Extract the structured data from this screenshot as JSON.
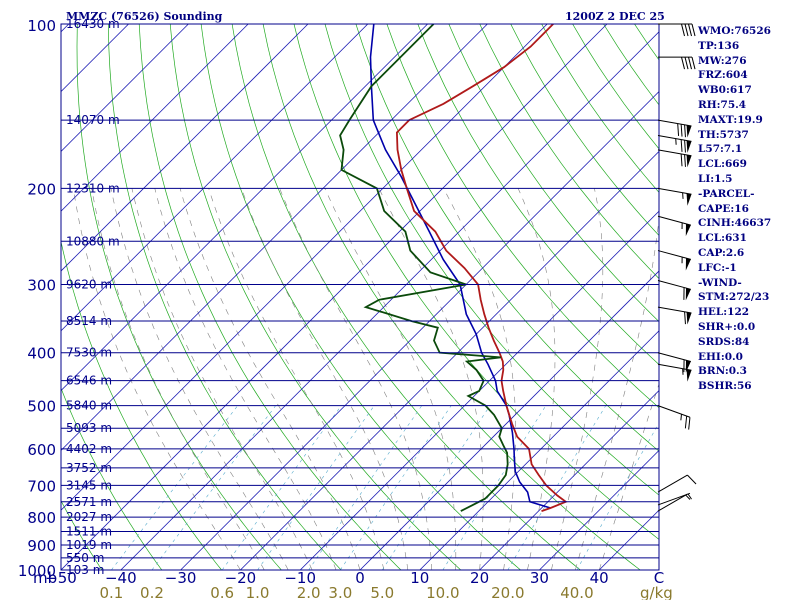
{
  "header": {
    "station_title": "MMZC (76526) Sounding",
    "valid_time": "1200Z  2 DEC 25"
  },
  "indices": [
    "WMO:76526",
    "TP:136",
    "MW:276",
    "FRZ:604",
    "WB0:617",
    "RH:75.4",
    "MAXT:19.9",
    "TH:5737",
    "L57:7.1",
    "LCL:669",
    "LI:1.5",
    "-PARCEL-",
    "CAPE:16",
    "CINH:46637",
    "LCL:631",
    "CAP:2.6",
    "LFC:-1",
    "-WIND-",
    "STM:272/23",
    "HEL:122",
    "SHR+:0.0",
    "SRDS:84",
    "EHI:0.0",
    "BRN:0.3",
    "BSHR:56"
  ],
  "colors": {
    "isobar": "#00008b",
    "isotherm": "#1e1eb4",
    "dry_adiabat": "#22aa22",
    "moist_adiabat": "#808080",
    "mixing_ratio": "#6fa34a",
    "dewpoint_faint": "#55aacc",
    "temperature": "#b01a1a",
    "dewpoint": "#0b4a0b",
    "parcel": "#0000aa",
    "label": "#00008b",
    "mixing_label": "#8a7a2e"
  },
  "chart_data": {
    "type": "skew-t",
    "xlabel": "C",
    "y_unit": "mb",
    "x_range_C": [
      -50,
      50
    ],
    "p_range_mb": [
      1000,
      100
    ],
    "pressure_ticks": [
      100,
      200,
      300,
      400,
      500,
      600,
      700,
      800,
      900,
      1000
    ],
    "temperature_ticks": [
      -50,
      -40,
      -30,
      -20,
      -10,
      0,
      10,
      20,
      30,
      40
    ],
    "mixing_ratio_unit": "g/kg",
    "mixing_ratio_ticks": [
      "0.1",
      "0.2",
      "0.6",
      "1.0",
      "2.0",
      "3.0",
      "5.0",
      "10.0",
      "20.0",
      "40.0"
    ],
    "height_labels": [
      {
        "p": 100,
        "text": "16430 m"
      },
      {
        "p": 150,
        "text": "14070 m"
      },
      {
        "p": 200,
        "text": "12310 m"
      },
      {
        "p": 250,
        "text": "10880 m"
      },
      {
        "p": 300,
        "text": "9620 m"
      },
      {
        "p": 350,
        "text": "8514 m"
      },
      {
        "p": 400,
        "text": "7530 m"
      },
      {
        "p": 450,
        "text": "6546 m"
      },
      {
        "p": 500,
        "text": "5840 m"
      },
      {
        "p": 550,
        "text": "5093 m"
      },
      {
        "p": 600,
        "text": "4402 m"
      },
      {
        "p": 650,
        "text": "3752 m"
      },
      {
        "p": 700,
        "text": "3145 m"
      },
      {
        "p": 750,
        "text": "2571 m"
      },
      {
        "p": 800,
        "text": "2027 m"
      },
      {
        "p": 850,
        "text": "1511 m"
      },
      {
        "p": 900,
        "text": "1019 m"
      },
      {
        "p": 950,
        "text": "550 m"
      },
      {
        "p": 1000,
        "text": "103 m"
      }
    ],
    "temperature_profile": [
      [
        780,
        20.5
      ],
      [
        770,
        21.5
      ],
      [
        750,
        23
      ],
      [
        730,
        20.5
      ],
      [
        700,
        17
      ],
      [
        670,
        14
      ],
      [
        640,
        11
      ],
      [
        600,
        8
      ],
      [
        570,
        4
      ],
      [
        540,
        1
      ],
      [
        500,
        -3
      ],
      [
        470,
        -6
      ],
      [
        450,
        -8
      ],
      [
        430,
        -9.5
      ],
      [
        415,
        -11
      ],
      [
        400,
        -13
      ],
      [
        380,
        -16
      ],
      [
        360,
        -19
      ],
      [
        340,
        -22
      ],
      [
        320,
        -25
      ],
      [
        300,
        -28
      ],
      [
        280,
        -33
      ],
      [
        260,
        -39
      ],
      [
        240,
        -44
      ],
      [
        220,
        -51
      ],
      [
        200,
        -56
      ],
      [
        185,
        -60
      ],
      [
        170,
        -64
      ],
      [
        158,
        -67
      ],
      [
        150,
        -67
      ],
      [
        140,
        -64
      ],
      [
        130,
        -62
      ],
      [
        120,
        -60
      ],
      [
        110,
        -59
      ],
      [
        105,
        -59
      ],
      [
        100,
        -59
      ]
    ],
    "dewpoint_profile": [
      [
        780,
        7
      ],
      [
        760,
        8
      ],
      [
        740,
        9
      ],
      [
        720,
        9
      ],
      [
        700,
        9
      ],
      [
        670,
        8.5
      ],
      [
        640,
        7
      ],
      [
        610,
        5
      ],
      [
        590,
        3
      ],
      [
        570,
        1
      ],
      [
        550,
        0
      ],
      [
        520,
        -3.5
      ],
      [
        500,
        -6.5
      ],
      [
        480,
        -11
      ],
      [
        470,
        -10
      ],
      [
        450,
        -11
      ],
      [
        430,
        -14
      ],
      [
        415,
        -17
      ],
      [
        408,
        -12
      ],
      [
        400,
        -23
      ],
      [
        380,
        -26
      ],
      [
        360,
        -27.5
      ],
      [
        350,
        -33
      ],
      [
        330,
        -43
      ],
      [
        320,
        -42
      ],
      [
        300,
        -30
      ],
      [
        285,
        -38
      ],
      [
        260,
        -45
      ],
      [
        240,
        -49
      ],
      [
        220,
        -56
      ],
      [
        200,
        -61
      ],
      [
        185,
        -70
      ],
      [
        170,
        -73
      ],
      [
        160,
        -76
      ],
      [
        150,
        -77
      ],
      [
        130,
        -79
      ],
      [
        110,
        -79
      ],
      [
        100,
        -79
      ]
    ],
    "parcel_profile": [
      [
        770,
        21.5
      ],
      [
        750,
        17
      ],
      [
        720,
        15
      ],
      [
        690,
        12
      ],
      [
        660,
        9.5
      ],
      [
        630,
        7.5
      ],
      [
        600,
        5.5
      ],
      [
        560,
        2.5
      ],
      [
        520,
        -1
      ],
      [
        500,
        -3
      ],
      [
        470,
        -7
      ],
      [
        450,
        -9
      ],
      [
        420,
        -13
      ],
      [
        400,
        -16
      ],
      [
        370,
        -20
      ],
      [
        340,
        -25
      ],
      [
        300,
        -31
      ],
      [
        270,
        -38
      ],
      [
        240,
        -45
      ],
      [
        210,
        -53
      ],
      [
        190,
        -59
      ],
      [
        170,
        -66
      ],
      [
        150,
        -73
      ],
      [
        130,
        -79
      ],
      [
        115,
        -84
      ],
      [
        100,
        -89
      ]
    ],
    "wind_barbs": [
      {
        "p": 100,
        "dir": 270,
        "kt": 40
      },
      {
        "p": 115,
        "dir": 270,
        "kt": 40
      },
      {
        "p": 150,
        "dir": 280,
        "kt": 80
      },
      {
        "p": 160,
        "dir": 280,
        "kt": 75
      },
      {
        "p": 170,
        "dir": 280,
        "kt": 70
      },
      {
        "p": 200,
        "dir": 280,
        "kt": 55
      },
      {
        "p": 225,
        "dir": 285,
        "kt": 55
      },
      {
        "p": 260,
        "dir": 285,
        "kt": 55
      },
      {
        "p": 295,
        "dir": 285,
        "kt": 60
      },
      {
        "p": 330,
        "dir": 280,
        "kt": 60
      },
      {
        "p": 400,
        "dir": 285,
        "kt": 60
      },
      {
        "p": 420,
        "dir": 280,
        "kt": 55
      },
      {
        "p": 500,
        "dir": 290,
        "kt": 25
      },
      {
        "p": 720,
        "dir": 240,
        "kt": 10
      },
      {
        "p": 760,
        "dir": 250,
        "kt": 5
      },
      {
        "p": 780,
        "dir": 240,
        "kt": 5
      }
    ]
  }
}
